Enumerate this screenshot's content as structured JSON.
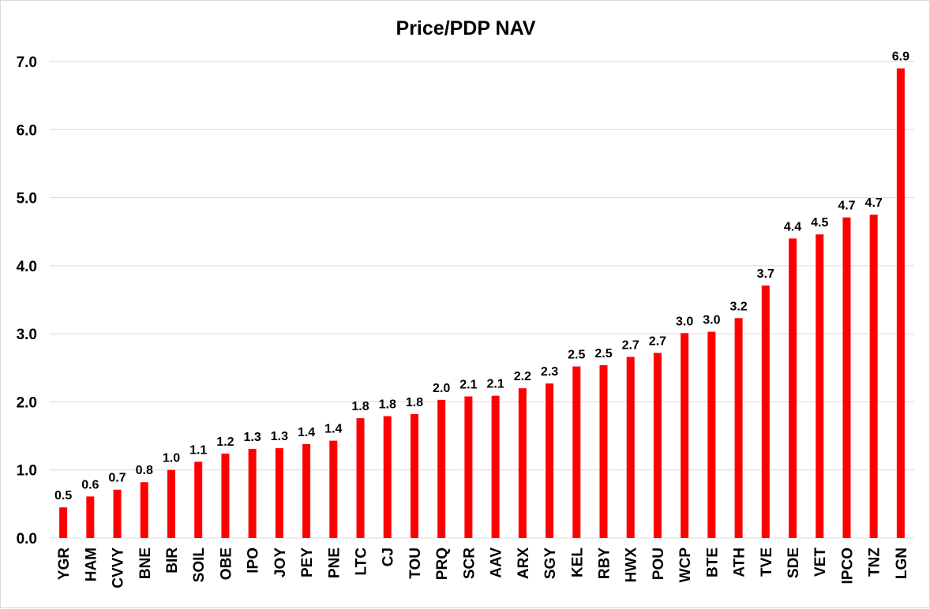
{
  "chart_data": {
    "type": "bar",
    "title": "Price/PDP NAV",
    "xlabel": "",
    "ylabel": "",
    "ylim": [
      0,
      7
    ],
    "ytick_step": 1,
    "ytick_labels": [
      "0.0",
      "1.0",
      "2.0",
      "3.0",
      "4.0",
      "5.0",
      "6.0",
      "7.0"
    ],
    "grid": true,
    "legend": "none",
    "bar_color": "#ff0000",
    "categories": [
      "YGR",
      "HAM",
      "CVVY",
      "BNE",
      "BIR",
      "SOIL",
      "OBE",
      "IPO",
      "JOY",
      "PEY",
      "PNE",
      "LTC",
      "CJ",
      "TOU",
      "PRQ",
      "SCR",
      "AAV",
      "ARX",
      "SGY",
      "KEL",
      "RBY",
      "HWX",
      "POU",
      "WCP",
      "BTE",
      "ATH",
      "TVE",
      "SDE",
      "VET",
      "IPCO",
      "TNZ",
      "LGN"
    ],
    "values": [
      0.45,
      0.61,
      0.71,
      0.82,
      1.0,
      1.12,
      1.24,
      1.31,
      1.32,
      1.38,
      1.43,
      1.76,
      1.79,
      1.82,
      2.03,
      2.08,
      2.09,
      2.2,
      2.27,
      2.52,
      2.54,
      2.66,
      2.72,
      3.01,
      3.03,
      3.23,
      3.71,
      4.4,
      4.46,
      4.71,
      4.75,
      6.9
    ],
    "data_labels": [
      "0.5",
      "0.6",
      "0.7",
      "0.8",
      "1.0",
      "1.1",
      "1.2",
      "1.3",
      "1.3",
      "1.4",
      "1.4",
      "1.8",
      "1.8",
      "1.8",
      "2.0",
      "2.1",
      "2.1",
      "2.2",
      "2.3",
      "2.5",
      "2.5",
      "2.7",
      "2.7",
      "3.0",
      "3.0",
      "3.2",
      "3.7",
      "4.4",
      "4.5",
      "4.7",
      "4.7",
      "6.9"
    ]
  }
}
